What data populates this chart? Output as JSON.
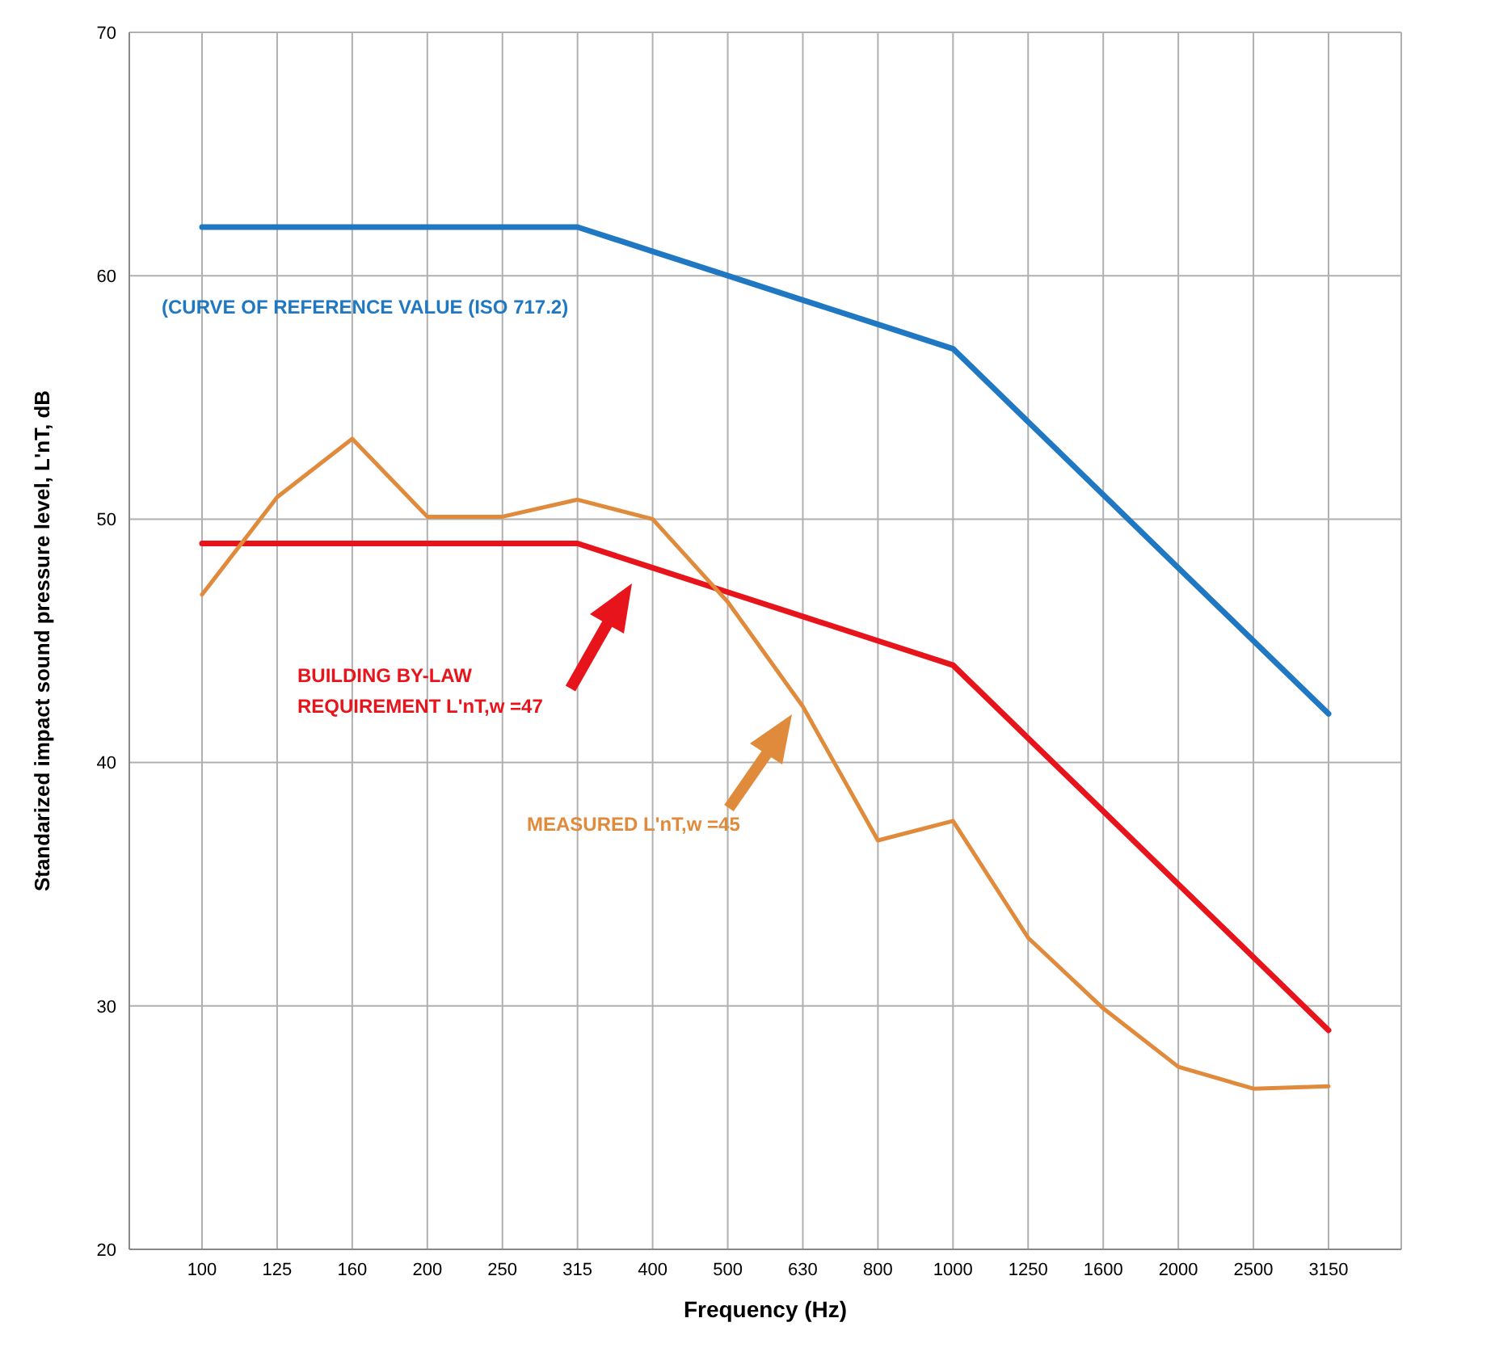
{
  "chart_data": {
    "type": "line",
    "xlabel": "Frequency (Hz)",
    "ylabel": "Standarized impact sound pressure level, L'nT, dB",
    "categories": [
      "100",
      "125",
      "160",
      "200",
      "250",
      "315",
      "400",
      "500",
      "630",
      "800",
      "1000",
      "1250",
      "1600",
      "2000",
      "2500",
      "3150"
    ],
    "series": [
      {
        "color": "#1f78c1",
        "values": [
          62,
          62,
          62,
          62,
          62,
          62,
          61,
          60,
          59,
          58,
          57,
          54,
          51,
          48,
          45,
          42
        ]
      },
      {
        "color": "#e8141c",
        "values": [
          49,
          49,
          49,
          49,
          49,
          49,
          48,
          47,
          46,
          45,
          44,
          41,
          38,
          35,
          32,
          29
        ]
      },
      {
        "color": "#e08a3c",
        "values": [
          46.9,
          50.9,
          53.3,
          50.1,
          50.1,
          50.8,
          50.0,
          46.6,
          42.3,
          36.8,
          37.6,
          32.8,
          29.9,
          27.5,
          26.6,
          26.7
        ]
      }
    ],
    "ylim": [
      20,
      70
    ],
    "yticks": [
      20,
      30,
      40,
      50,
      60,
      70
    ],
    "grid": true,
    "legend": false,
    "marker": "none",
    "line_style": "solid",
    "annotations": [
      "(CURVE OF REFERENCE VALUE (ISO 717.2)",
      "BUILDING BY-LAW\nREQUIREMENT  L'nT,w =47",
      "MEASURED  L'nT,w =45"
    ]
  }
}
